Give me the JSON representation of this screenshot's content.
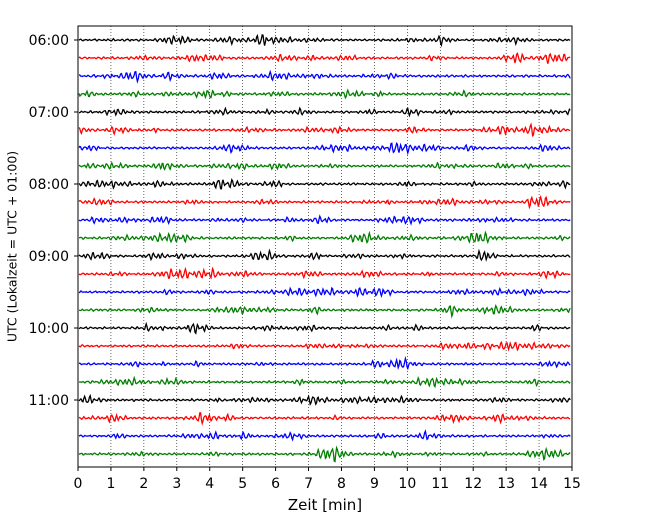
{
  "chart_data": {
    "type": "line",
    "title": "",
    "xlabel": "Zeit  [min]",
    "ylabel": "UTC (Lokalzeit = UTC + 01:00)",
    "xlim": [
      0,
      15
    ],
    "x_ticks": [
      "0",
      "1",
      "2",
      "3",
      "4",
      "5",
      "6",
      "7",
      "8",
      "9",
      "10",
      "11",
      "12",
      "13",
      "14",
      "15"
    ],
    "y_ticks": [
      "06:00",
      "07:00",
      "08:00",
      "09:00",
      "10:00",
      "11:00"
    ],
    "trace_interval_min": 15,
    "grid": "vertical-dotted",
    "colors": [
      "#000000",
      "#ff0000",
      "#0000ff",
      "#007f00"
    ],
    "traces": [
      {
        "start": "06:00"
      },
      {
        "start": "06:15"
      },
      {
        "start": "06:30"
      },
      {
        "start": "06:45"
      },
      {
        "start": "07:00"
      },
      {
        "start": "07:15"
      },
      {
        "start": "07:30"
      },
      {
        "start": "07:45"
      },
      {
        "start": "08:00"
      },
      {
        "start": "08:15"
      },
      {
        "start": "08:30"
      },
      {
        "start": "08:45"
      },
      {
        "start": "09:00"
      },
      {
        "start": "09:15"
      },
      {
        "start": "09:30"
      },
      {
        "start": "09:45"
      },
      {
        "start": "10:00"
      },
      {
        "start": "10:15"
      },
      {
        "start": "10:30"
      },
      {
        "start": "10:45"
      },
      {
        "start": "11:00"
      },
      {
        "start": "11:15"
      },
      {
        "start": "11:30"
      },
      {
        "start": "11:45"
      }
    ]
  }
}
